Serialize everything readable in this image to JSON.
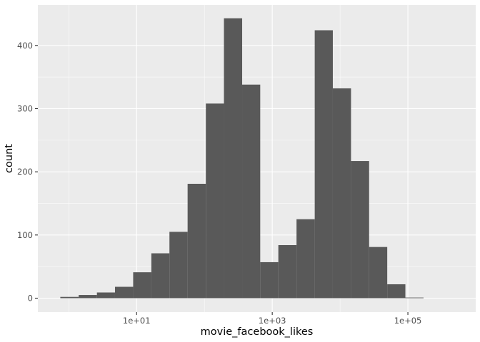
{
  "chart_data": {
    "type": "bar",
    "title": "",
    "xlabel": "movie_facebook_likes",
    "ylabel": "count",
    "x_scale": "log10",
    "xlim": [
      0.35,
      1000000
    ],
    "ylim": [
      -22,
      464
    ],
    "x_ticks": [
      {
        "value": 10,
        "label": "1e+01"
      },
      {
        "value": 1000,
        "label": "1e+03"
      },
      {
        "value": 100000,
        "label": "1e+05"
      }
    ],
    "y_ticks": [
      {
        "value": 0,
        "label": "0"
      },
      {
        "value": 100,
        "label": "100"
      },
      {
        "value": 200,
        "label": "200"
      },
      {
        "value": 300,
        "label": "300"
      },
      {
        "value": 400,
        "label": "400"
      }
    ],
    "grid": true,
    "bins": [
      {
        "x0": 0.75,
        "x1": 1.4,
        "count": 2
      },
      {
        "x0": 1.4,
        "x1": 2.6,
        "count": 5
      },
      {
        "x0": 2.6,
        "x1": 4.8,
        "count": 9
      },
      {
        "x0": 4.8,
        "x1": 8.9,
        "count": 18
      },
      {
        "x0": 8.9,
        "x1": 16.5,
        "count": 41
      },
      {
        "x0": 16.5,
        "x1": 30.5,
        "count": 71
      },
      {
        "x0": 30.5,
        "x1": 56.5,
        "count": 105
      },
      {
        "x0": 56.5,
        "x1": 105,
        "count": 181
      },
      {
        "x0": 105,
        "x1": 194,
        "count": 308
      },
      {
        "x0": 194,
        "x1": 360,
        "count": 443
      },
      {
        "x0": 360,
        "x1": 665,
        "count": 338
      },
      {
        "x0": 665,
        "x1": 1230,
        "count": 57
      },
      {
        "x0": 1230,
        "x1": 2280,
        "count": 84
      },
      {
        "x0": 2280,
        "x1": 4230,
        "count": 125
      },
      {
        "x0": 4230,
        "x1": 7820,
        "count": 424
      },
      {
        "x0": 7820,
        "x1": 14500,
        "count": 332
      },
      {
        "x0": 14500,
        "x1": 26800,
        "count": 217
      },
      {
        "x0": 26800,
        "x1": 49600,
        "count": 81
      },
      {
        "x0": 49600,
        "x1": 91800,
        "count": 22
      },
      {
        "x0": 91800,
        "x1": 170000,
        "count": 1
      }
    ]
  }
}
